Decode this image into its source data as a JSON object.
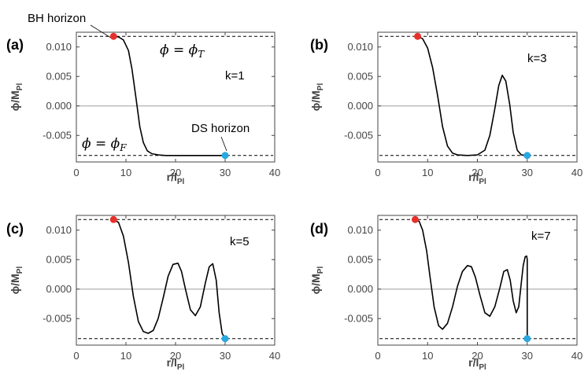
{
  "colors": {
    "curve": "#000000",
    "bh_marker": "#e8302b",
    "ds_marker": "#29a8e0",
    "zero_line": "#b0b0b0",
    "frame": "#444444"
  },
  "chart_data": [
    {
      "type": "line",
      "panel_label": "(a)",
      "k_label": "k=1",
      "xlabel": "r/l",
      "xlabel_sub": "Pl",
      "ylabel": "ϕ/M",
      "ylabel_sub": "Pl",
      "xlim": [
        0,
        40
      ],
      "ylim": [
        -0.0095,
        0.0125
      ],
      "xticks": [
        0,
        10,
        20,
        30,
        40
      ],
      "yticks": [
        -0.005,
        0.0,
        0.005,
        0.01
      ],
      "ytick_labels": [
        "-0.005",
        "0.000",
        "0.005",
        "0.010"
      ],
      "phi_T": 0.0118,
      "phi_F": -0.0084,
      "bh_horizon_r": 7.5,
      "ds_horizon_r": 30,
      "annotations": {
        "bh_horizon": "BH horizon",
        "ds_horizon": "DS horizon",
        "phi_T_label": "ϕ = ϕT",
        "phi_F_label": "ϕ = ϕF"
      },
      "series": [
        {
          "x": [
            7.5,
            8.5,
            9.5,
            10.5,
            11.2,
            12.0,
            12.8,
            13.5,
            14.3,
            15.2,
            16.5,
            18,
            20,
            24,
            28,
            30
          ],
          "y": [
            0.0118,
            0.0117,
            0.0112,
            0.0094,
            0.0063,
            0.0015,
            -0.0035,
            -0.0062,
            -0.0076,
            -0.0081,
            -0.0083,
            -0.0084,
            -0.0084,
            -0.0084,
            -0.0084,
            -0.0084
          ]
        }
      ]
    },
    {
      "type": "line",
      "panel_label": "(b)",
      "k_label": "k=3",
      "xlabel": "r/l",
      "xlabel_sub": "Pl",
      "ylabel": "ϕ/M",
      "ylabel_sub": "Pl",
      "xlim": [
        0,
        40
      ],
      "ylim": [
        -0.0095,
        0.0125
      ],
      "xticks": [
        0,
        10,
        20,
        30,
        40
      ],
      "yticks": [
        -0.005,
        0.0,
        0.005,
        0.01
      ],
      "ytick_labels": [
        "-0.005",
        "0.000",
        "0.005",
        "0.010"
      ],
      "phi_T": 0.0118,
      "phi_F": -0.0084,
      "bh_horizon_r": 8.0,
      "ds_horizon_r": 30,
      "series": [
        {
          "x": [
            8,
            9,
            10,
            11,
            12,
            13,
            14,
            15,
            16,
            18,
            20,
            21.5,
            22.5,
            23.5,
            24.3,
            25.0,
            25.7,
            26.5,
            27.2,
            28.0,
            28.8,
            30
          ],
          "y": [
            0.0118,
            0.0114,
            0.0098,
            0.0065,
            0.0018,
            -0.0035,
            -0.0068,
            -0.008,
            -0.0083,
            -0.0084,
            -0.0083,
            -0.0075,
            -0.005,
            -0.0005,
            0.0035,
            0.0052,
            0.0042,
            0.0002,
            -0.0045,
            -0.0075,
            -0.0083,
            -0.0084
          ]
        }
      ]
    },
    {
      "type": "line",
      "panel_label": "(c)",
      "k_label": "k=5",
      "xlabel": "r/l",
      "xlabel_sub": "Pl",
      "ylabel": "ϕ/M",
      "ylabel_sub": "Pl",
      "xlim": [
        0,
        40
      ],
      "ylim": [
        -0.0095,
        0.0125
      ],
      "xticks": [
        0,
        10,
        20,
        30,
        40
      ],
      "yticks": [
        -0.005,
        0.0,
        0.005,
        0.01
      ],
      "ytick_labels": [
        "-0.005",
        "0.000",
        "0.005",
        "0.010"
      ],
      "phi_T": 0.0118,
      "phi_F": -0.0084,
      "bh_horizon_r": 7.5,
      "ds_horizon_r": 30,
      "series": [
        {
          "x": [
            7.5,
            8.5,
            9.5,
            10.5,
            11.5,
            12.5,
            13.5,
            14.5,
            15.5,
            16.5,
            17.5,
            18.5,
            19.5,
            20.5,
            21.2,
            22.0,
            23.0,
            24.0,
            25.0,
            26.0,
            26.8,
            27.5,
            28.2,
            28.8,
            29.4,
            30
          ],
          "y": [
            0.0118,
            0.0113,
            0.009,
            0.0045,
            -0.0012,
            -0.0055,
            -0.0072,
            -0.0075,
            -0.007,
            -0.005,
            -0.0015,
            0.0022,
            0.0042,
            0.0044,
            0.003,
            0.0,
            -0.0035,
            -0.0045,
            -0.003,
            0.001,
            0.0038,
            0.0043,
            0.0015,
            -0.004,
            -0.0075,
            -0.0084
          ]
        }
      ]
    },
    {
      "type": "line",
      "panel_label": "(d)",
      "k_label": "k=7",
      "xlabel": "r/l",
      "xlabel_sub": "Pl",
      "ylabel": "ϕ/M",
      "ylabel_sub": "Pl",
      "xlim": [
        0,
        40
      ],
      "ylim": [
        -0.0095,
        0.0125
      ],
      "xticks": [
        0,
        10,
        20,
        30,
        40
      ],
      "yticks": [
        -0.005,
        0.0,
        0.005,
        0.01
      ],
      "ytick_labels": [
        "-0.005",
        "0.000",
        "0.005",
        "0.010"
      ],
      "phi_T": 0.0118,
      "phi_F": -0.0084,
      "bh_horizon_r": 7.5,
      "ds_horizon_r": 30,
      "series": [
        {
          "x": [
            7.5,
            8.3,
            9.0,
            9.8,
            10.5,
            11.3,
            12.2,
            13.0,
            14.0,
            15.0,
            16.0,
            17.0,
            18.0,
            18.8,
            19.6,
            20.5,
            21.5,
            22.5,
            23.5,
            24.5,
            25.3,
            26.0,
            26.6,
            27.2,
            27.8,
            28.3,
            28.8,
            29.2,
            29.6,
            29.9,
            30.0,
            30.0
          ],
          "y": [
            0.0118,
            0.0115,
            0.01,
            0.0065,
            0.002,
            -0.003,
            -0.0062,
            -0.0068,
            -0.0058,
            -0.003,
            0.0005,
            0.003,
            0.004,
            0.0038,
            0.002,
            -0.001,
            -0.004,
            -0.0046,
            -0.003,
            0.0002,
            0.003,
            0.0033,
            0.0015,
            -0.002,
            -0.004,
            -0.003,
            0.001,
            0.004,
            0.0055,
            0.0056,
            0.005,
            -0.0084
          ]
        }
      ]
    }
  ]
}
